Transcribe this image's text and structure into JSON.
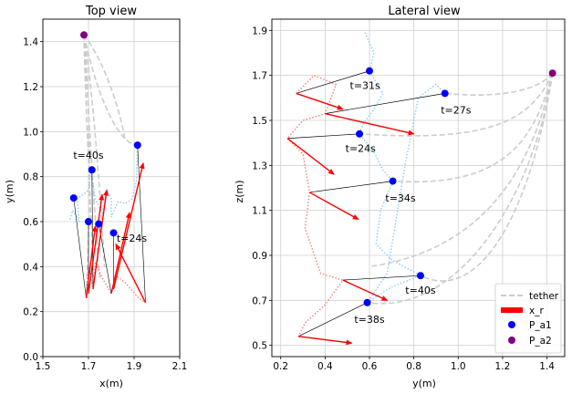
{
  "chart_data": [
    {
      "type": "scatter",
      "title": "Top view",
      "xlabel": "x(m)",
      "ylabel": "y(m)",
      "xlim": [
        1.5,
        2.1
      ],
      "ylim": [
        0.0,
        1.5
      ],
      "xticks": [
        "1.5",
        "1.7",
        "1.9",
        "2.1"
      ],
      "yticks": [
        "0.0",
        "0.2",
        "0.4",
        "0.6",
        "0.8",
        "1.0",
        "1.2",
        "1.4"
      ],
      "grid": true,
      "colors": {
        "P_a1": "#0000ff",
        "P_a2": "#800080",
        "x_r": "#ff0000",
        "tether": "#cccccc",
        "P_a1_path": "#87cefa",
        "x_r_path": "#f08070"
      },
      "P_a1": [
        [
          1.635,
          0.705
        ],
        [
          1.7,
          0.6
        ],
        [
          1.715,
          0.83
        ],
        [
          1.745,
          0.59
        ],
        [
          1.81,
          0.55
        ],
        [
          1.915,
          0.94
        ]
      ],
      "P_a2": [
        [
          1.68,
          1.43
        ]
      ],
      "annotations": [
        {
          "text": "t=40s",
          "x": 1.7,
          "y": 0.88
        },
        {
          "text": "t=24s",
          "x": 1.89,
          "y": 0.51
        }
      ],
      "x_r_arrows": [
        {
          "from": [
            1.69,
            0.26
          ],
          "to": [
            1.73,
            0.58
          ]
        },
        {
          "from": [
            1.7,
            0.28
          ],
          "to": [
            1.76,
            0.72
          ]
        },
        {
          "from": [
            1.72,
            0.3
          ],
          "to": [
            1.78,
            0.74
          ]
        },
        {
          "from": [
            1.8,
            0.28
          ],
          "to": [
            1.88,
            0.64
          ]
        },
        {
          "from": [
            1.81,
            0.3
          ],
          "to": [
            1.94,
            0.86
          ]
        },
        {
          "from": [
            1.95,
            0.24
          ],
          "to": [
            1.82,
            0.5
          ]
        }
      ],
      "tether_lines": [
        [
          [
            1.68,
            1.43
          ],
          [
            1.69,
            1.0
          ],
          [
            1.72,
            0.5
          ],
          [
            1.72,
            0.3
          ]
        ],
        [
          [
            1.68,
            1.43
          ],
          [
            1.7,
            1.1
          ],
          [
            1.73,
            0.55
          ],
          [
            1.75,
            0.35
          ]
        ],
        [
          [
            1.68,
            1.43
          ],
          [
            1.72,
            1.2
          ],
          [
            1.76,
            0.6
          ],
          [
            1.77,
            0.4
          ]
        ],
        [
          [
            1.68,
            1.43
          ],
          [
            1.72,
            1.0
          ],
          [
            1.7,
            0.5
          ],
          [
            1.69,
            0.28
          ]
        ],
        [
          [
            1.68,
            1.43
          ],
          [
            1.74,
            1.15
          ],
          [
            1.83,
            0.95
          ],
          [
            1.91,
            0.94
          ]
        ],
        [
          [
            1.68,
            1.43
          ],
          [
            1.78,
            1.3
          ],
          [
            1.85,
            1.05
          ],
          [
            1.86,
            0.96
          ]
        ]
      ],
      "p_a1_path": [
        [
          1.62,
          0.61
        ],
        [
          1.63,
          0.65
        ],
        [
          1.66,
          0.6
        ],
        [
          1.65,
          0.7
        ],
        [
          1.7,
          0.74
        ],
        [
          1.71,
          0.83
        ],
        [
          1.73,
          0.7
        ],
        [
          1.76,
          0.64
        ],
        [
          1.78,
          0.74
        ],
        [
          1.8,
          0.7
        ],
        [
          1.8,
          0.62
        ],
        [
          1.83,
          0.69
        ],
        [
          1.86,
          0.68
        ],
        [
          1.89,
          0.7
        ],
        [
          1.91,
          0.78
        ],
        [
          1.915,
          0.94
        ]
      ],
      "x_r_path": [
        [
          1.69,
          0.26
        ],
        [
          1.7,
          0.4
        ],
        [
          1.72,
          0.3
        ],
        [
          1.73,
          0.42
        ],
        [
          1.76,
          0.35
        ],
        [
          1.8,
          0.28
        ],
        [
          1.82,
          0.36
        ],
        [
          1.86,
          0.33
        ],
        [
          1.92,
          0.26
        ],
        [
          1.95,
          0.24
        ]
      ]
    },
    {
      "type": "scatter",
      "title": "Lateral view",
      "xlabel": "y(m)",
      "ylabel": "z(m)",
      "xlim": [
        0.16,
        1.48
      ],
      "ylim": [
        0.45,
        1.95
      ],
      "xticks": [
        "0.2",
        "0.4",
        "0.6",
        "0.8",
        "1.0",
        "1.2",
        "1.4"
      ],
      "yticks": [
        "0.5",
        "0.7",
        "0.9",
        "1.1",
        "1.3",
        "1.5",
        "1.7",
        "1.9"
      ],
      "grid": true,
      "legend": {
        "position": "lower-right",
        "entries": [
          "tether",
          "x_r",
          "P_a1",
          "P_a2"
        ]
      },
      "P_a1": [
        [
          0.6,
          1.72
        ],
        [
          0.94,
          1.62
        ],
        [
          0.555,
          1.44
        ],
        [
          0.705,
          1.23
        ],
        [
          0.83,
          0.81
        ],
        [
          0.59,
          0.69
        ]
      ],
      "P_a2": [
        [
          1.425,
          1.71
        ]
      ],
      "annotations": [
        {
          "text": "t=31s",
          "x": 0.58,
          "y": 1.64
        },
        {
          "text": "t=27s",
          "x": 0.99,
          "y": 1.53
        },
        {
          "text": "t=24s",
          "x": 0.56,
          "y": 1.36
        },
        {
          "text": "t=34s",
          "x": 0.74,
          "y": 1.14
        },
        {
          "text": "t=40s",
          "x": 0.83,
          "y": 0.73
        },
        {
          "text": "t=38s",
          "x": 0.6,
          "y": 0.6
        }
      ],
      "x_r_arrows": [
        {
          "from": [
            0.27,
            1.62
          ],
          "to": [
            0.48,
            1.55
          ]
        },
        {
          "from": [
            0.4,
            1.53
          ],
          "to": [
            0.8,
            1.44
          ]
        },
        {
          "from": [
            0.23,
            1.42
          ],
          "to": [
            0.44,
            1.26
          ]
        },
        {
          "from": [
            0.33,
            1.18
          ],
          "to": [
            0.55,
            1.06
          ]
        },
        {
          "from": [
            0.48,
            0.79
          ],
          "to": [
            0.68,
            0.7
          ]
        },
        {
          "from": [
            0.28,
            0.54
          ],
          "to": [
            0.52,
            0.51
          ]
        }
      ],
      "black_links": [
        [
          [
            0.27,
            1.62
          ],
          [
            0.6,
            1.72
          ]
        ],
        [
          [
            0.4,
            1.53
          ],
          [
            0.94,
            1.62
          ]
        ],
        [
          [
            0.23,
            1.42
          ],
          [
            0.555,
            1.44
          ]
        ],
        [
          [
            0.33,
            1.18
          ],
          [
            0.705,
            1.23
          ]
        ],
        [
          [
            0.48,
            0.79
          ],
          [
            0.83,
            0.81
          ]
        ],
        [
          [
            0.28,
            0.54
          ],
          [
            0.59,
            0.69
          ]
        ]
      ],
      "tether_lines": [
        [
          [
            1.425,
            1.71
          ],
          [
            1.33,
            1.1
          ],
          [
            1.1,
            0.68
          ],
          [
            0.83,
            0.81
          ]
        ],
        [
          [
            1.425,
            1.71
          ],
          [
            1.35,
            1.2
          ],
          [
            1.02,
            0.63
          ],
          [
            0.59,
            0.69
          ]
        ],
        [
          [
            1.425,
            1.71
          ],
          [
            1.34,
            1.4
          ],
          [
            1.2,
            1.2
          ],
          [
            0.705,
            1.23
          ]
        ],
        [
          [
            1.425,
            1.71
          ],
          [
            1.33,
            1.5
          ],
          [
            1.15,
            1.4
          ],
          [
            0.555,
            1.44
          ]
        ],
        [
          [
            1.425,
            1.71
          ],
          [
            1.35,
            1.62
          ],
          [
            1.15,
            1.6
          ],
          [
            0.94,
            1.62
          ]
        ],
        [
          [
            1.425,
            1.71
          ],
          [
            1.3,
            1.1
          ],
          [
            0.95,
            0.9
          ],
          [
            0.6,
            0.85
          ]
        ]
      ],
      "p_a1_path": [
        [
          0.58,
          1.89
        ],
        [
          0.62,
          1.8
        ],
        [
          0.6,
          1.72
        ],
        [
          0.66,
          1.62
        ],
        [
          0.62,
          1.55
        ],
        [
          0.57,
          1.48
        ],
        [
          0.555,
          1.44
        ],
        [
          0.62,
          1.36
        ],
        [
          0.66,
          1.28
        ],
        [
          0.705,
          1.23
        ],
        [
          0.65,
          1.1
        ],
        [
          0.63,
          0.95
        ],
        [
          0.7,
          0.88
        ],
        [
          0.83,
          0.81
        ],
        [
          0.7,
          0.76
        ],
        [
          0.59,
          0.69
        ],
        [
          0.68,
          0.82
        ],
        [
          0.76,
          1.3
        ],
        [
          0.82,
          1.6
        ],
        [
          0.9,
          1.66
        ],
        [
          0.94,
          1.62
        ]
      ],
      "x_r_path": [
        [
          0.27,
          1.62
        ],
        [
          0.35,
          1.7
        ],
        [
          0.45,
          1.66
        ],
        [
          0.4,
          1.53
        ],
        [
          0.3,
          1.5
        ],
        [
          0.23,
          1.42
        ],
        [
          0.3,
          1.35
        ],
        [
          0.33,
          1.18
        ],
        [
          0.31,
          1.02
        ],
        [
          0.38,
          0.82
        ],
        [
          0.48,
          0.79
        ],
        [
          0.4,
          0.68
        ],
        [
          0.31,
          0.6
        ],
        [
          0.28,
          0.54
        ]
      ]
    }
  ]
}
